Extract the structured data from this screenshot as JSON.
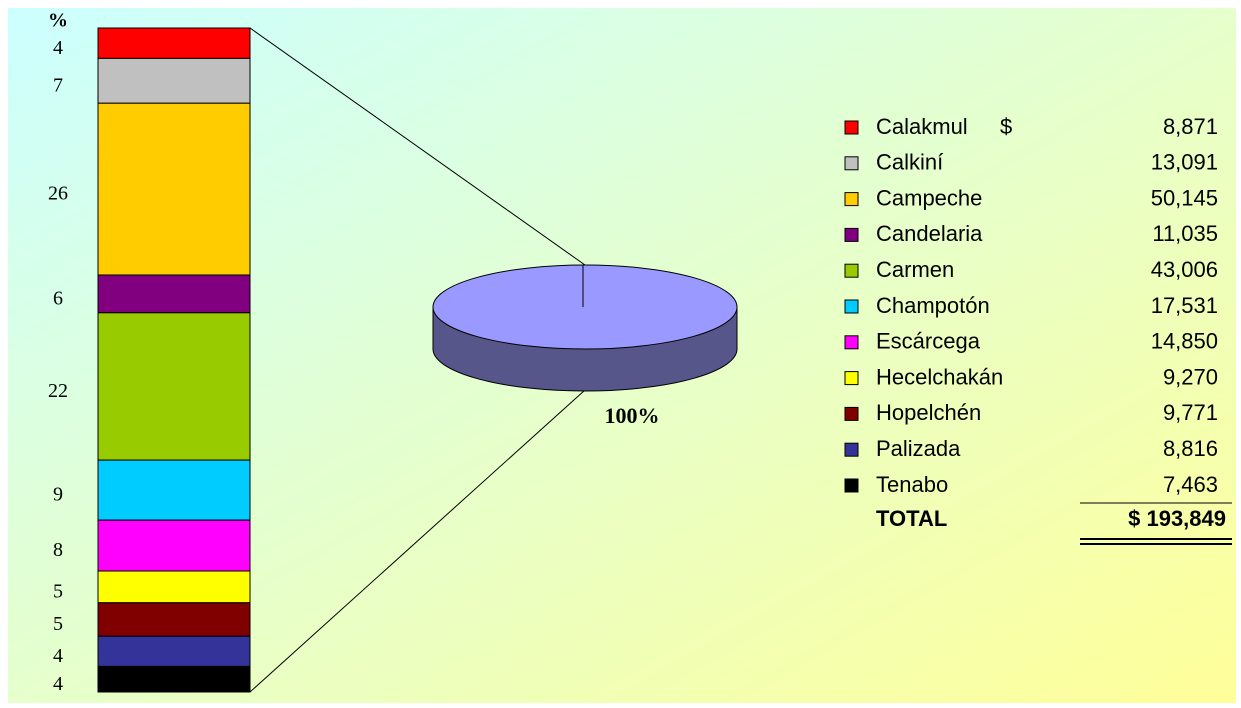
{
  "chart_data": {
    "type": "barofpie",
    "percent_label": "%",
    "series": [
      {
        "name": "Calakmul",
        "color": "#ff0000",
        "value": 8871,
        "value_label": "8,871",
        "percent": 4
      },
      {
        "name": "Calkiní",
        "color": "#c0c0c0",
        "value": 13091,
        "value_label": "13,091",
        "percent": 7
      },
      {
        "name": "Campeche",
        "color": "#ffcc00",
        "value": 50145,
        "value_label": "50,145",
        "percent": 26
      },
      {
        "name": "Candelaria",
        "color": "#800080",
        "value": 11035,
        "value_label": "11,035",
        "percent": 6
      },
      {
        "name": "Carmen",
        "color": "#99cc00",
        "value": 43006,
        "value_label": "43,006",
        "percent": 22
      },
      {
        "name": "Champotón",
        "color": "#00ccff",
        "value": 17531,
        "value_label": "17,531",
        "percent": 9
      },
      {
        "name": "Escárcega",
        "color": "#ff00ff",
        "value": 14850,
        "value_label": "14,850",
        "percent": 8
      },
      {
        "name": "Hecelchakán",
        "color": "#ffff00",
        "value": 9270,
        "value_label": "9,270",
        "percent": 5
      },
      {
        "name": "Hopelchén",
        "color": "#800000",
        "value": 9771,
        "value_label": "9,771",
        "percent": 5
      },
      {
        "name": "Palizada",
        "color": "#333399",
        "value": 8816,
        "value_label": "8,816",
        "percent": 4
      },
      {
        "name": "Tenabo",
        "color": "#000000",
        "value": 7463,
        "value_label": "7,463",
        "percent": 4
      }
    ],
    "currency": "$",
    "total_name": "TOTAL",
    "total": 193849,
    "total_label": "$ 193,849",
    "pie": {
      "value": 100,
      "value_label": "100%",
      "color": "#9999ff"
    }
  }
}
